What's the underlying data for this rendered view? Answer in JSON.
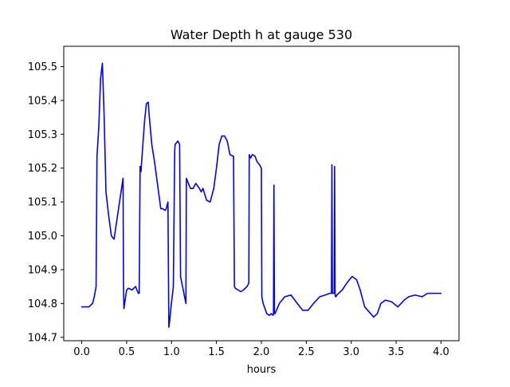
{
  "chart_data": {
    "type": "line",
    "title": "Water Depth h at gauge 530",
    "xlabel": "hours",
    "ylabel": "",
    "xlim": [
      -0.2,
      4.2
    ],
    "ylim": [
      104.69,
      105.56
    ],
    "xticks": [
      0.0,
      0.5,
      1.0,
      1.5,
      2.0,
      2.5,
      3.0,
      3.5,
      4.0
    ],
    "xtick_labels": [
      "0.0",
      "0.5",
      "1.0",
      "1.5",
      "2.0",
      "2.5",
      "3.0",
      "3.5",
      "4.0"
    ],
    "yticks": [
      104.7,
      104.8,
      104.9,
      105.0,
      105.1,
      105.2,
      105.3,
      105.4,
      105.5
    ],
    "ytick_labels": [
      "104.7",
      "104.8",
      "104.9",
      "105.0",
      "105.1",
      "105.2",
      "105.3",
      "105.4",
      "105.5"
    ],
    "grid": false,
    "line_color": "#0000ff",
    "series": [
      {
        "x": [
          0.0,
          0.08,
          0.12,
          0.14,
          0.16,
          0.17,
          0.19,
          0.21,
          0.23,
          0.25,
          0.27,
          0.3,
          0.33,
          0.36,
          0.41,
          0.46,
          0.465,
          0.47,
          0.5,
          0.52,
          0.56,
          0.6,
          0.63,
          0.64,
          0.65,
          0.66,
          0.67,
          0.7,
          0.72,
          0.74,
          0.75,
          0.78,
          0.81,
          0.84,
          0.88,
          0.9,
          0.93,
          0.94,
          0.96,
          0.97,
          0.98,
          0.99,
          1.02,
          1.035,
          1.04,
          1.07,
          1.09,
          1.1,
          1.13,
          1.16,
          1.165,
          1.18,
          1.21,
          1.24,
          1.27,
          1.31,
          1.33,
          1.35,
          1.39,
          1.43,
          1.47,
          1.5,
          1.53,
          1.56,
          1.59,
          1.62,
          1.65,
          1.69,
          1.7,
          1.71,
          1.74,
          1.77,
          1.8,
          1.84,
          1.86,
          1.865,
          1.88,
          1.9,
          1.93,
          1.95,
          1.98,
          2.0,
          2.005,
          2.02,
          2.06,
          2.09,
          2.11,
          2.13,
          2.135,
          2.14,
          2.145,
          2.15,
          2.16,
          2.2,
          2.26,
          2.33,
          2.4,
          2.46,
          2.52,
          2.58,
          2.65,
          2.71,
          2.76,
          2.78,
          2.785,
          2.79,
          2.8,
          2.81,
          2.815,
          2.82,
          2.825,
          2.83,
          2.84,
          2.9,
          2.95,
          3.01,
          3.06,
          3.1,
          3.15,
          3.2,
          3.25,
          3.29,
          3.33,
          3.38,
          3.45,
          3.52,
          3.59,
          3.64,
          3.71,
          3.79,
          3.85,
          3.91,
          3.96,
          4.0
        ],
        "y": [
          104.79,
          104.79,
          104.8,
          104.82,
          104.85,
          105.235,
          105.32,
          105.465,
          105.51,
          105.35,
          105.13,
          105.06,
          105.0,
          104.99,
          105.08,
          105.17,
          104.86,
          104.785,
          104.84,
          104.845,
          104.84,
          104.85,
          104.83,
          104.83,
          105.205,
          105.19,
          105.23,
          105.34,
          105.39,
          105.395,
          105.36,
          105.27,
          105.22,
          105.16,
          105.08,
          105.08,
          105.075,
          105.08,
          105.1,
          104.73,
          104.75,
          104.78,
          104.85,
          105.25,
          105.27,
          105.28,
          105.27,
          104.88,
          104.84,
          104.8,
          105.17,
          105.16,
          105.14,
          105.14,
          105.155,
          105.14,
          105.13,
          105.14,
          105.105,
          105.1,
          105.14,
          105.2,
          105.27,
          105.295,
          105.295,
          105.28,
          105.24,
          105.235,
          104.85,
          104.845,
          104.84,
          104.835,
          104.84,
          104.85,
          104.86,
          105.24,
          105.23,
          105.24,
          105.235,
          105.22,
          105.21,
          105.2,
          104.82,
          104.8,
          104.77,
          104.765,
          104.77,
          104.765,
          104.77,
          105.15,
          104.77,
          104.77,
          104.775,
          104.8,
          104.82,
          104.825,
          104.8,
          104.78,
          104.78,
          104.8,
          104.82,
          104.825,
          104.83,
          104.83,
          105.21,
          104.83,
          104.83,
          104.83,
          105.205,
          104.83,
          104.82,
          104.82,
          104.825,
          104.84,
          104.86,
          104.88,
          104.87,
          104.84,
          104.79,
          104.775,
          104.76,
          104.77,
          104.8,
          104.81,
          104.805,
          104.79,
          104.81,
          104.82,
          104.825,
          104.82,
          104.83,
          104.83,
          104.83,
          104.83
        ]
      }
    ]
  }
}
